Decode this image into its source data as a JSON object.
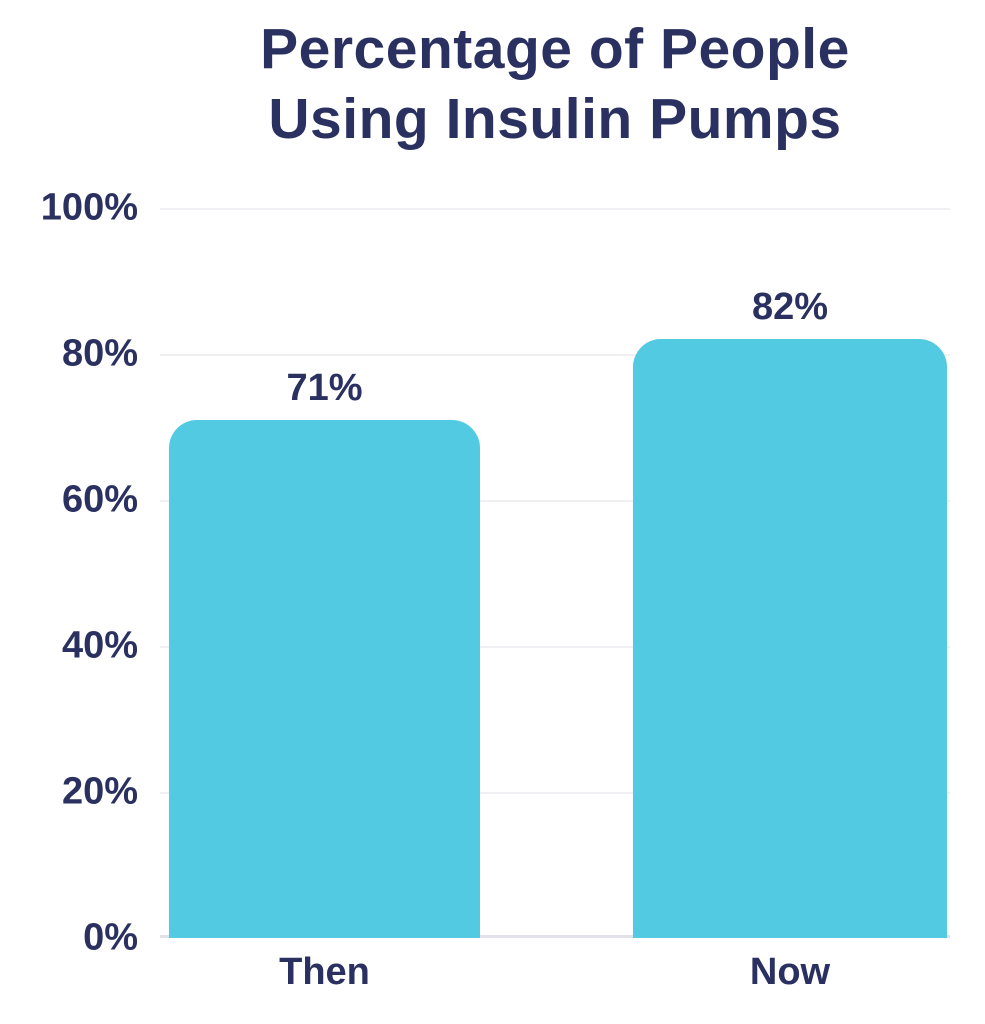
{
  "chart_data": {
    "type": "bar",
    "title": "Percentage of People Using Insulin Pumps",
    "title_lines": [
      "Percentage of People",
      "Using Insulin Pumps"
    ],
    "categories": [
      "Then",
      "Now"
    ],
    "values": [
      71,
      82
    ],
    "value_labels": [
      "71%",
      "82%"
    ],
    "y_ticks": [
      "100%",
      "80%",
      "60%",
      "40%",
      "20%",
      "0%"
    ],
    "ylim": [
      0,
      100
    ],
    "grid": true,
    "legend": "none",
    "colors": {
      "bar": "#52cbe2",
      "text": "#2a3060",
      "gridline": "#f0f0f4",
      "baseline": "#e2e2ea",
      "background": "#ffffff"
    }
  }
}
